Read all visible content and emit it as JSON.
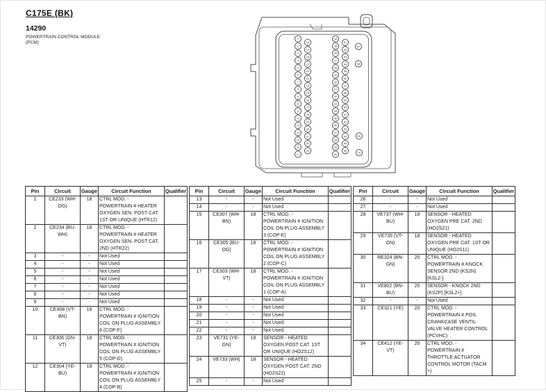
{
  "page": {
    "connector_id": "C175E (BK)",
    "part_number": "14290",
    "module_name": "POWERTRAIN CONTROL MODULE",
    "module_abbr": "(PCM)"
  },
  "table_headers": {
    "pin": "Pin",
    "circuit": "Circuit",
    "gauge": "Gauge",
    "function": "Circuit Function",
    "qualifier": "Qualifier"
  },
  "connector_diagram": {
    "pin_columns": {
      "left_outer": [
        1,
        2,
        3,
        4,
        5,
        6,
        7,
        8,
        9,
        10,
        11,
        12,
        13,
        14,
        15,
        16,
        17
      ],
      "left_inner": [
        18,
        19,
        20,
        21,
        22,
        23,
        24,
        25,
        26,
        27,
        28,
        29,
        30,
        31,
        32,
        33
      ],
      "right_outer": [
        34,
        35,
        36,
        37,
        38,
        39,
        40,
        41,
        42,
        43,
        44,
        45,
        46,
        47,
        48,
        49,
        50
      ],
      "right_inner": [
        51,
        52,
        53,
        54,
        55,
        56,
        57,
        58,
        59,
        60,
        61,
        62,
        63,
        64,
        65,
        66
      ],
      "isolated": [
        67,
        68,
        69,
        70
      ]
    }
  },
  "tables": [
    {
      "rows": [
        {
          "pin": "1",
          "circuit": "CE233 (WH-OG)",
          "gauge": "18",
          "function": "CTRL MOD. - POWERTRAIN # HEATER OXYGEN SEN. POST CAT. 1ST OR UNIQUE (HTR12)",
          "qualifier": ""
        },
        {
          "pin": "2",
          "circuit": "CE234 (BU-WH)",
          "gauge": "18",
          "function": "CTRL MOD. - POWERTRAIN # HEATER OXYGEN SEN. POST CAT. 2ND (HTR22)",
          "qualifier": ""
        },
        {
          "pin": "3",
          "circuit": "-",
          "gauge": "-",
          "function": "Not Used",
          "qualifier": ""
        },
        {
          "pin": "4",
          "circuit": "-",
          "gauge": "-",
          "function": "Not Used",
          "qualifier": ""
        },
        {
          "pin": "5",
          "circuit": "-",
          "gauge": "-",
          "function": "Not Used",
          "qualifier": ""
        },
        {
          "pin": "6",
          "circuit": "-",
          "gauge": "-",
          "function": "Not Used",
          "qualifier": ""
        },
        {
          "pin": "7",
          "circuit": "-",
          "gauge": "-",
          "function": "Not Used",
          "qualifier": ""
        },
        {
          "pin": "8",
          "circuit": "-",
          "gauge": "-",
          "function": "Not Used",
          "qualifier": ""
        },
        {
          "pin": "9",
          "circuit": "-",
          "gauge": "-",
          "function": "Not Used",
          "qualifier": ""
        },
        {
          "pin": "10",
          "circuit": "CE308 (VT-BN)",
          "gauge": "18",
          "function": "CTRL MOD. - POWERTRAIN # IGNITION COIL ON PLUG ASSEMBLY 6 (COP-F)",
          "qualifier": ""
        },
        {
          "pin": "11",
          "circuit": "CE306 (GN-VT)",
          "gauge": "18",
          "function": "CTRL MOD. - POWERTRAIN # IGNITION COIL ON PLUG ASSEMBLY 5 (COP-D)",
          "qualifier": ""
        },
        {
          "pin": "12",
          "circuit": "CE304 (YE-BU)",
          "gauge": "18",
          "function": "CTRL MOD. - POWERTRAIN # IGNITION COIL ON PLUG ASSEMBLY 4 (COP-B)",
          "qualifier": ""
        }
      ]
    },
    {
      "rows": [
        {
          "pin": "13",
          "circuit": "-",
          "gauge": "-",
          "function": "Not Used",
          "qualifier": ""
        },
        {
          "pin": "14",
          "circuit": "-",
          "gauge": "-",
          "function": "Not Used",
          "qualifier": ""
        },
        {
          "pin": "15",
          "circuit": "CE307 (WH-BN)",
          "gauge": "18",
          "function": "CTRL MOD. - POWERTRAIN # IGNITION COIL ON PLUG ASSEMBLY 3 (COP-E)",
          "qualifier": ""
        },
        {
          "pin": "16",
          "circuit": "CE305 (BU-OG)",
          "gauge": "18",
          "function": "CTRL MOD. - POWERTRAIN # IGNITION COIL ON PLUG ASSEMBLY 2 (COP-C)",
          "qualifier": ""
        },
        {
          "pin": "17",
          "circuit": "CE303 (WH-VT)",
          "gauge": "18",
          "function": "CTRL MOD. - POWERTRAIN # IGNITION COIL ON PLUG ASSEMBLY 1 (COP-A)",
          "qualifier": ""
        },
        {
          "pin": "18",
          "circuit": "-",
          "gauge": "-",
          "function": "Not Used",
          "qualifier": ""
        },
        {
          "pin": "19",
          "circuit": "-",
          "gauge": "-",
          "function": "Not Used",
          "qualifier": ""
        },
        {
          "pin": "20",
          "circuit": "-",
          "gauge": "-",
          "function": "Not Used",
          "qualifier": ""
        },
        {
          "pin": "21",
          "circuit": "-",
          "gauge": "-",
          "function": "Not Used",
          "qualifier": ""
        },
        {
          "pin": "22",
          "circuit": "-",
          "gauge": "-",
          "function": "Not Used",
          "qualifier": ""
        },
        {
          "pin": "23",
          "circuit": "VE731 (YE-GN)",
          "gauge": "18",
          "function": "SENSOR - HEATED OXYGEN POST CAT. 1ST OR UNIQUE (HO2S12)",
          "qualifier": ""
        },
        {
          "pin": "24",
          "circuit": "VE733 (WH)",
          "gauge": "18",
          "function": "SENSOR - HEATED OXYGEN POST CAT. 2ND (HO2S22)",
          "qualifier": ""
        },
        {
          "pin": "25",
          "circuit": "-",
          "gauge": "-",
          "function": "Not Used",
          "qualifier": ""
        }
      ]
    },
    {
      "rows": [
        {
          "pin": "26",
          "circuit": "-",
          "gauge": "-",
          "function": "Not Used",
          "qualifier": ""
        },
        {
          "pin": "27",
          "circuit": "-",
          "gauge": "-",
          "function": "Not Used",
          "qualifier": ""
        },
        {
          "pin": "28",
          "circuit": "VE737 (WH-BU)",
          "gauge": "18",
          "function": "SENSOR - HEATED OXYGEN PRE CAT. 2ND (HO2S21)",
          "qualifier": ""
        },
        {
          "pin": "29",
          "circuit": "VE735 (VT-GN)",
          "gauge": "18",
          "function": "SENSOR - HEATED OXYGEN PRE CAT. 1ST OR UNIQUE (HO2S11)",
          "qualifier": ""
        },
        {
          "pin": "30",
          "circuit": "RE324 (BN-GN)",
          "gauge": "20",
          "function": "CTRL MOD. - POWERTRAIN # KNOCK SENSOR 2ND (KS2N) [KSL2-]",
          "qualifier": ""
        },
        {
          "pin": "31",
          "circuit": "VE802 (BN-BU)",
          "gauge": "20",
          "function": "SENSOR - KNOCK 2ND (KS2P) [KSL2+]",
          "qualifier": ""
        },
        {
          "pin": "32",
          "circuit": "-",
          "gauge": "-",
          "function": "Not Used",
          "qualifier": ""
        },
        {
          "pin": "33",
          "circuit": "CE321 (YE)",
          "gauge": "20",
          "function": "CTRL MOD. - POWERTRAIN # POS. CRANKCASE VENTIL. VALVE HEATER CONTROL (PCVHC)",
          "qualifier": ""
        },
        {
          "pin": "34",
          "circuit": "CE412 (YE-VT)",
          "gauge": "20",
          "function": "CTRL MOD. - POWERTRAIN # THROTTLE ACTUATOR CONTROL MOTOR (TACM +)",
          "qualifier": ""
        }
      ]
    }
  ]
}
